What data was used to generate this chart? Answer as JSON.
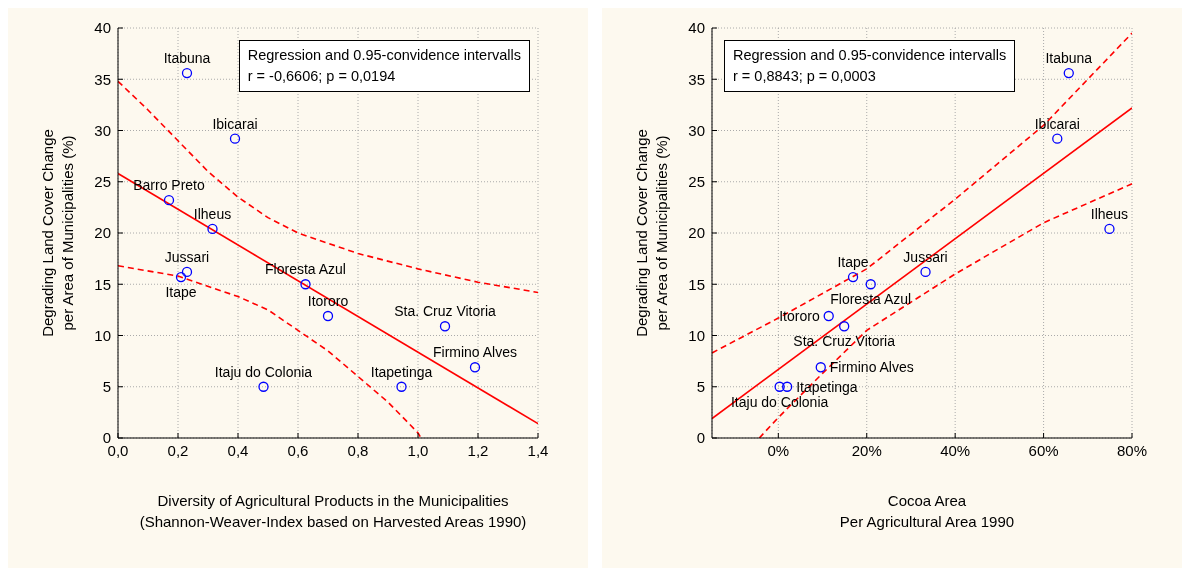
{
  "chart_data": [
    {
      "type": "scatter",
      "xlabel": "Diversity of Agricultural Products in the Municipalities\n(Shannon-Weaver-Index based on Harvested Areas 1990)",
      "ylabel": "Degrading Land Cover Change\nper Area of Municipalities (%)",
      "xlim": [
        0,
        1.4
      ],
      "xticks": [
        {
          "value": 0,
          "label": "0,0"
        },
        {
          "value": 0.2,
          "label": "0,2"
        },
        {
          "value": 0.4,
          "label": "0,4"
        },
        {
          "value": 0.6,
          "label": "0,6"
        },
        {
          "value": 0.8,
          "label": "0,8"
        },
        {
          "value": 1,
          "label": "1,0"
        },
        {
          "value": 1.2,
          "label": "1,2"
        },
        {
          "value": 1.4,
          "label": "1,4"
        }
      ],
      "ylim": [
        0,
        40
      ],
      "yticks": [
        0,
        5,
        10,
        15,
        20,
        25,
        30,
        35,
        40
      ],
      "grid": true,
      "series": [
        {
          "marker": "circle",
          "color": "#0000ff",
          "x": [
            0.23,
            0.39,
            0.17,
            0.315,
            0.23,
            0.21,
            0.625,
            0.7,
            1.09,
            1.19,
            0.485,
            0.945
          ],
          "values": [
            35.6,
            29.2,
            23.2,
            20.4,
            16.2,
            15.7,
            15,
            11.9,
            10.9,
            6.9,
            5,
            5
          ]
        },
        {
          "type": "line",
          "color": "#ff0000",
          "line_style": "solid",
          "x": [
            0,
            1.4
          ],
          "values": [
            25.8,
            1.4
          ]
        },
        {
          "type": "line",
          "color": "#ff0000",
          "line_style": "dashed",
          "x": [
            0,
            0.1,
            0.2,
            0.3,
            0.4,
            0.5,
            0.6,
            0.8,
            1,
            1.2,
            1.4
          ],
          "values": [
            34.8,
            32,
            29,
            26,
            23.5,
            21.5,
            20,
            18,
            16.5,
            15.2,
            14.2
          ]
        },
        {
          "type": "line",
          "color": "#ff0000",
          "line_style": "dashed",
          "x": [
            0,
            0.2,
            0.4,
            0.5,
            0.6,
            0.7,
            0.8,
            0.9,
            1,
            1.01
          ],
          "values": [
            16.8,
            15.8,
            13.8,
            12.5,
            10.5,
            8.5,
            6,
            3.5,
            0.5,
            0
          ]
        }
      ],
      "annotations": [
        "Regression and 0.95-convidence intervalls\nr = -0,6606; p = 0,0194",
        {
          "text": "Itabuna",
          "x": 0.23,
          "y": 35.6
        },
        {
          "text": "Ibicarai",
          "x": 0.39,
          "y": 29.2
        },
        {
          "text": "Barro Preto",
          "x": 0.17,
          "y": 23.2
        },
        {
          "text": "Ilheus",
          "x": 0.315,
          "y": 20.4
        },
        {
          "text": "Jussari",
          "x": 0.23,
          "y": 16.2
        },
        {
          "text": "Itape",
          "x": 0.21,
          "y": 15.7
        },
        {
          "text": "Floresta Azul",
          "x": 0.625,
          "y": 15
        },
        {
          "text": "Itororo",
          "x": 0.7,
          "y": 11.9
        },
        {
          "text": "Sta. Cruz Vitoria",
          "x": 1.09,
          "y": 10.9
        },
        {
          "text": "Firmino Alves",
          "x": 1.19,
          "y": 6.9
        },
        {
          "text": "Itaju do Colonia",
          "x": 0.485,
          "y": 5
        },
        {
          "text": "Itapetinga",
          "x": 0.945,
          "y": 5
        }
      ]
    },
    {
      "type": "scatter",
      "xlabel": "Cocoa Area\nPer Agricultural Area 1990",
      "ylabel": "Degrading Land Cover Change\nper Area of Municipalities (%)",
      "xlim": [
        -15,
        80
      ],
      "xticks": [
        {
          "value": 0,
          "label": "0%"
        },
        {
          "value": 20,
          "label": "20%"
        },
        {
          "value": 40,
          "label": "40%"
        },
        {
          "value": 60,
          "label": "60%"
        },
        {
          "value": 80,
          "label": "80%"
        }
      ],
      "ylim": [
        0,
        40
      ],
      "yticks": [
        0,
        5,
        10,
        15,
        20,
        25,
        30,
        35,
        40
      ],
      "grid": true,
      "series": [
        {
          "marker": "circle",
          "color": "#0000ff",
          "x": [
            65.7,
            63.1,
            74.9,
            33.3,
            16.9,
            20.9,
            11.4,
            14.9,
            9.6,
            0.3,
            2
          ],
          "values": [
            35.6,
            29.2,
            20.4,
            16.2,
            15.7,
            15,
            11.9,
            10.9,
            6.9,
            5,
            5
          ]
        },
        {
          "type": "line",
          "color": "#ff0000",
          "line_style": "solid",
          "x": [
            -15,
            80
          ],
          "values": [
            1.9,
            32.2
          ]
        },
        {
          "type": "line",
          "color": "#ff0000",
          "line_style": "dashed",
          "x": [
            -15,
            0,
            20,
            40,
            60,
            80
          ],
          "values": [
            8.3,
            11.7,
            16.5,
            23.3,
            30.5,
            39.5
          ]
        },
        {
          "type": "line",
          "color": "#ff0000",
          "line_style": "dashed",
          "x": [
            -4.3,
            0,
            10,
            20,
            40,
            60,
            80
          ],
          "values": [
            0,
            2,
            6.3,
            10.5,
            16,
            21,
            24.8
          ]
        }
      ],
      "annotations": [
        "Regression and 0.95-convidence intervalls\nr = 0,8843; p = 0,0003",
        {
          "text": "Itabuna",
          "x": 65.7,
          "y": 35.6
        },
        {
          "text": "Ibicarai",
          "x": 63.1,
          "y": 29.2
        },
        {
          "text": "Ilheus",
          "x": 74.9,
          "y": 20.4
        },
        {
          "text": "Jussari",
          "x": 33.3,
          "y": 16.2
        },
        {
          "text": "Itape",
          "x": 16.9,
          "y": 15.7
        },
        {
          "text": "Floresta Azul",
          "x": 20.9,
          "y": 15
        },
        {
          "text": "Itororo",
          "x": 11.4,
          "y": 11.9
        },
        {
          "text": "Sta. Cruz Vitoria",
          "x": 14.9,
          "y": 10.9
        },
        {
          "text": "Firmino Alves",
          "x": 9.6,
          "y": 6.9
        },
        {
          "text": "Itaju do Colonia",
          "x": 0.3,
          "y": 5
        },
        {
          "text": "Itapetinga",
          "x": 2,
          "y": 5
        }
      ]
    }
  ]
}
